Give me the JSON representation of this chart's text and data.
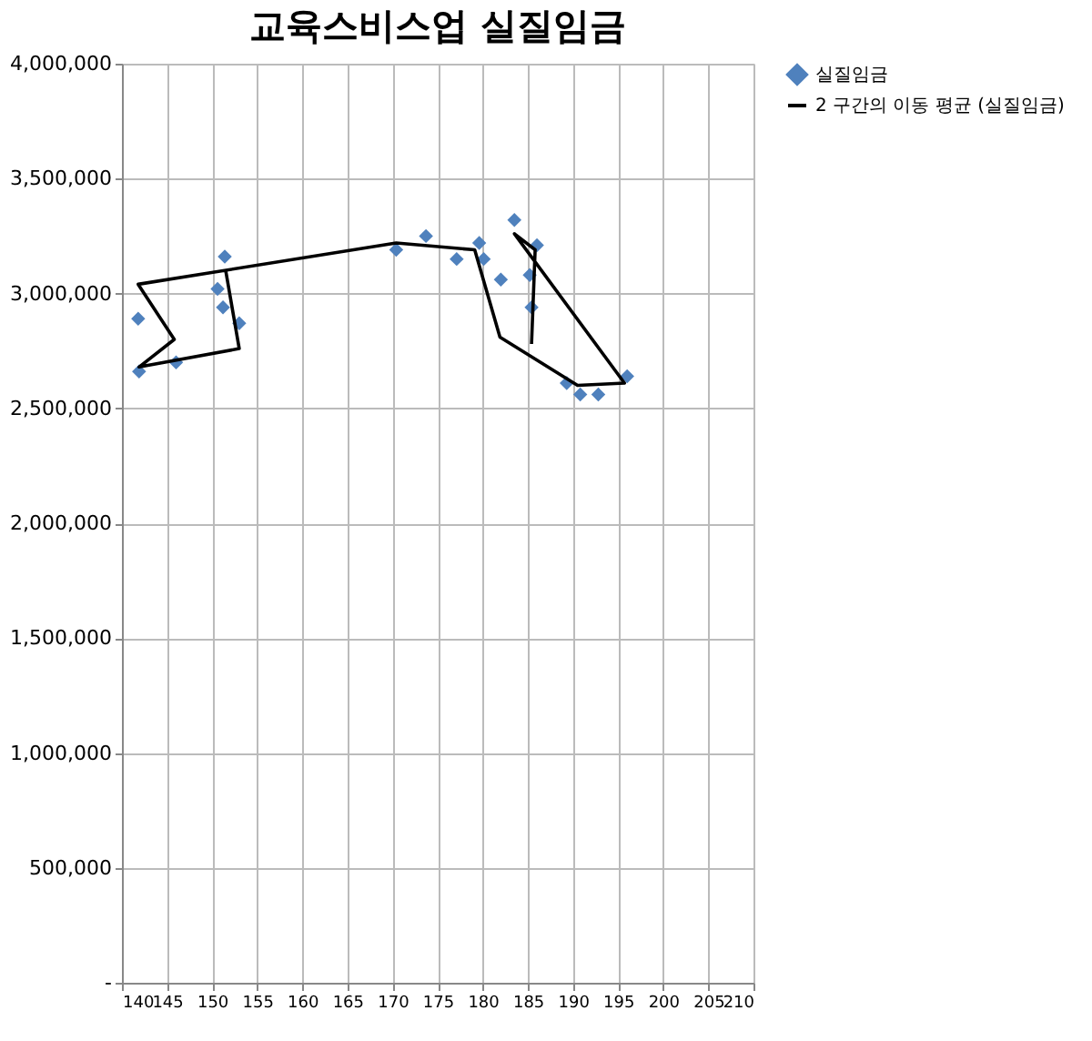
{
  "chart_data": {
    "type": "scatter",
    "title": "교육스비스업 실질임금",
    "xlim": [
      140,
      210
    ],
    "xticks": [
      140,
      145,
      150,
      155,
      160,
      165,
      170,
      175,
      180,
      185,
      190,
      195,
      200,
      205,
      210
    ],
    "ylim": [
      0,
      4000000
    ],
    "yticks": [
      {
        "value": 0,
        "label": "-"
      },
      {
        "value": 500000,
        "label": "500,000"
      },
      {
        "value": 1000000,
        "label": "1,000,000"
      },
      {
        "value": 1500000,
        "label": "1,500,000"
      },
      {
        "value": 2000000,
        "label": "2,000,000"
      },
      {
        "value": 2500000,
        "label": "2,500,000"
      },
      {
        "value": 3000000,
        "label": "3,000,000"
      },
      {
        "value": 3500000,
        "label": "3,500,000"
      },
      {
        "value": 4000000,
        "label": "4,000,000"
      }
    ],
    "grid": true,
    "legend": "right",
    "series": [
      {
        "name": "실질임금",
        "type": "scatter",
        "marker": "diamond",
        "color": "#4f81bd",
        "x": [
          141.8,
          141.9,
          146.0,
          151.4,
          150.6,
          151.2,
          153.0,
          170.4,
          173.7,
          177.1,
          179.6,
          180.1,
          182.0,
          183.5,
          186.0,
          185.2,
          185.4,
          189.3,
          190.8,
          192.8,
          196.0
        ],
        "values": [
          2890000,
          2660000,
          2700000,
          3160000,
          3020000,
          2940000,
          2870000,
          3190000,
          3250000,
          3150000,
          3220000,
          3150000,
          3060000,
          3320000,
          3210000,
          3080000,
          2940000,
          2610000,
          2560000,
          2560000,
          2640000
        ]
      },
      {
        "name": "2 구간의 이동 평균 (실질임금)",
        "type": "line",
        "marker": "none",
        "line_style": "solid",
        "color": "#000000",
        "x": [
          185.4,
          185.8,
          183.5,
          195.7,
          190.5,
          181.9,
          179.1,
          170.4,
          141.8,
          145.8,
          141.9,
          153.0,
          151.5
        ],
        "values": [
          2780000,
          3190000,
          3260000,
          2610000,
          2600000,
          2810000,
          3190000,
          3220000,
          3040000,
          2800000,
          2680000,
          2760000,
          3100000
        ]
      }
    ]
  }
}
